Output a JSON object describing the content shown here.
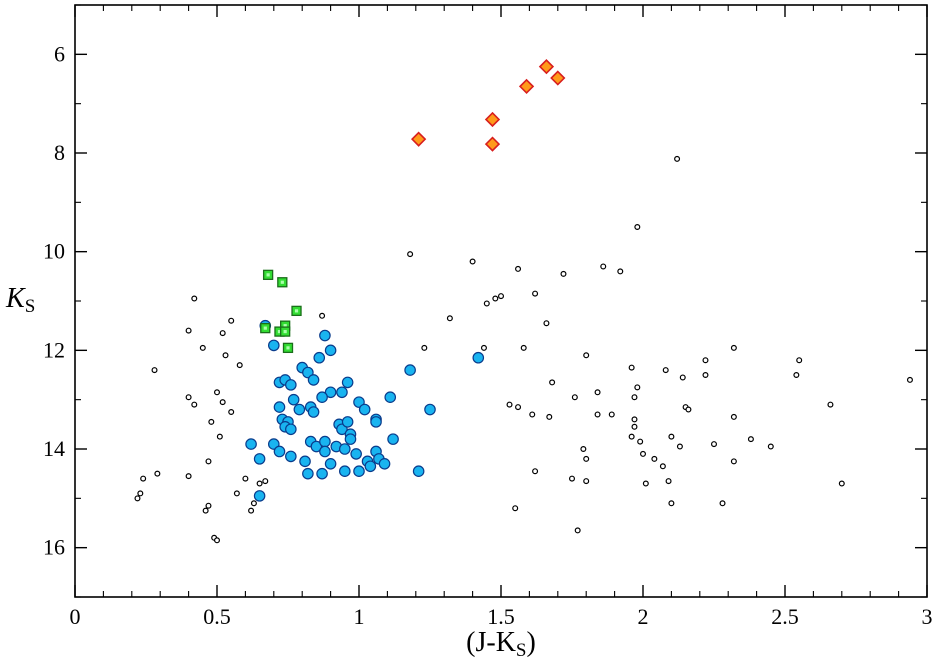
{
  "chart_data": {
    "type": "scatter",
    "title": "",
    "xlabel": "(J-K",
    "xlabel_sub": "S",
    "xlabel_close": ")",
    "ylabel": "K",
    "ylabel_sub": "S",
    "xlim": [
      0,
      3
    ],
    "ylim": [
      17,
      5
    ],
    "y_inverted": true,
    "x_major_ticks": [
      0,
      0.5,
      1,
      1.5,
      2,
      2.5,
      3
    ],
    "x_tick_labels": [
      "0",
      "0.5",
      "1",
      "1.5",
      "2",
      "2.5",
      "3"
    ],
    "y_major_ticks": [
      6,
      8,
      10,
      12,
      14,
      16
    ],
    "y_tick_labels": [
      "6",
      "8",
      "10",
      "12",
      "14",
      "16"
    ],
    "grid": false,
    "legend": "none",
    "colors": {
      "field": "#000000",
      "cyan_fill": "#19b4f0",
      "cyan_edge": "#0a3c8c",
      "green_fill": "#33dd33",
      "green_edge": "#1a6e1a",
      "orange_fill": "#ff9a1a",
      "orange_edge": "#d81e1e"
    },
    "series": [
      {
        "marker": "diamond",
        "color": "#ff9a1a",
        "points": [
          [
            1.21,
            7.72
          ],
          [
            1.47,
            7.32
          ],
          [
            1.47,
            7.82
          ],
          [
            1.59,
            6.65
          ],
          [
            1.66,
            6.25
          ],
          [
            1.7,
            6.48
          ]
        ]
      },
      {
        "marker": "square",
        "color": "#33dd33",
        "points": [
          [
            0.68,
            10.47
          ],
          [
            0.73,
            10.62
          ],
          [
            0.78,
            11.2
          ],
          [
            0.67,
            11.55
          ],
          [
            0.72,
            11.62
          ],
          [
            0.74,
            11.5
          ],
          [
            0.74,
            11.62
          ],
          [
            0.75,
            11.95
          ]
        ]
      },
      {
        "marker": "circle-filled",
        "color": "#19b4f0",
        "points": [
          [
            0.67,
            11.5
          ],
          [
            0.7,
            11.9
          ],
          [
            0.88,
            11.7
          ],
          [
            0.9,
            12.0
          ],
          [
            0.86,
            12.15
          ],
          [
            0.8,
            12.35
          ],
          [
            0.82,
            12.45
          ],
          [
            0.72,
            12.65
          ],
          [
            0.74,
            12.6
          ],
          [
            0.76,
            12.7
          ],
          [
            0.84,
            12.6
          ],
          [
            0.9,
            12.85
          ],
          [
            0.94,
            12.85
          ],
          [
            0.96,
            12.65
          ],
          [
            0.87,
            12.95
          ],
          [
            0.77,
            13.0
          ],
          [
            0.72,
            13.15
          ],
          [
            0.79,
            13.2
          ],
          [
            0.83,
            13.15
          ],
          [
            0.84,
            13.25
          ],
          [
            1.0,
            13.05
          ],
          [
            1.02,
            13.2
          ],
          [
            1.11,
            12.95
          ],
          [
            1.18,
            12.4
          ],
          [
            1.25,
            13.2
          ],
          [
            1.42,
            12.15
          ],
          [
            0.73,
            13.4
          ],
          [
            0.75,
            13.45
          ],
          [
            0.74,
            13.55
          ],
          [
            0.93,
            13.5
          ],
          [
            0.94,
            13.6
          ],
          [
            0.96,
            13.45
          ],
          [
            0.97,
            13.7
          ],
          [
            1.06,
            13.4
          ],
          [
            1.06,
            13.45
          ],
          [
            1.12,
            13.8
          ],
          [
            0.62,
            13.9
          ],
          [
            0.65,
            14.2
          ],
          [
            0.7,
            13.9
          ],
          [
            0.72,
            14.05
          ],
          [
            0.76,
            13.6
          ],
          [
            0.76,
            14.15
          ],
          [
            0.81,
            14.25
          ],
          [
            0.83,
            13.85
          ],
          [
            0.85,
            13.95
          ],
          [
            0.88,
            13.85
          ],
          [
            0.88,
            14.05
          ],
          [
            0.9,
            14.3
          ],
          [
            0.92,
            13.95
          ],
          [
            0.95,
            14.0
          ],
          [
            0.97,
            13.8
          ],
          [
            0.99,
            14.1
          ],
          [
            1.03,
            14.25
          ],
          [
            1.06,
            14.05
          ],
          [
            1.07,
            14.2
          ],
          [
            1.09,
            14.3
          ],
          [
            0.65,
            14.95
          ],
          [
            0.82,
            14.5
          ],
          [
            0.87,
            14.5
          ],
          [
            0.95,
            14.45
          ],
          [
            1.0,
            14.45
          ],
          [
            1.04,
            14.35
          ],
          [
            1.21,
            14.45
          ]
        ]
      },
      {
        "marker": "circle-open",
        "color": "#000000",
        "points": [
          [
            2.12,
            8.12
          ],
          [
            1.98,
            9.5
          ],
          [
            1.18,
            10.05
          ],
          [
            1.4,
            10.2
          ],
          [
            1.56,
            10.35
          ],
          [
            1.86,
            10.3
          ],
          [
            1.92,
            10.4
          ],
          [
            1.72,
            10.45
          ],
          [
            0.42,
            10.95
          ],
          [
            1.62,
            10.85
          ],
          [
            1.5,
            10.9
          ],
          [
            1.48,
            10.95
          ],
          [
            1.45,
            11.05
          ],
          [
            0.4,
            11.6
          ],
          [
            0.55,
            11.4
          ],
          [
            0.52,
            11.65
          ],
          [
            0.87,
            11.3
          ],
          [
            1.32,
            11.35
          ],
          [
            1.66,
            11.45
          ],
          [
            0.45,
            11.95
          ],
          [
            0.53,
            12.1
          ],
          [
            0.58,
            12.3
          ],
          [
            1.23,
            11.95
          ],
          [
            1.44,
            11.95
          ],
          [
            1.58,
            11.95
          ],
          [
            2.32,
            11.95
          ],
          [
            1.8,
            12.1
          ],
          [
            2.22,
            12.2
          ],
          [
            2.55,
            12.2
          ],
          [
            1.96,
            12.35
          ],
          [
            2.08,
            12.4
          ],
          [
            2.14,
            12.55
          ],
          [
            2.22,
            12.5
          ],
          [
            2.54,
            12.5
          ],
          [
            2.94,
            12.6
          ],
          [
            1.68,
            12.65
          ],
          [
            1.98,
            12.75
          ],
          [
            1.84,
            12.85
          ],
          [
            1.97,
            12.95
          ],
          [
            1.76,
            12.95
          ],
          [
            0.28,
            12.4
          ],
          [
            0.4,
            12.95
          ],
          [
            0.42,
            13.1
          ],
          [
            0.52,
            13.05
          ],
          [
            0.5,
            12.85
          ],
          [
            0.55,
            13.25
          ],
          [
            1.53,
            13.1
          ],
          [
            1.56,
            13.15
          ],
          [
            1.61,
            13.3
          ],
          [
            1.67,
            13.35
          ],
          [
            1.84,
            13.3
          ],
          [
            1.89,
            13.3
          ],
          [
            1.97,
            13.4
          ],
          [
            2.15,
            13.15
          ],
          [
            2.16,
            13.2
          ],
          [
            2.32,
            13.35
          ],
          [
            2.66,
            13.1
          ],
          [
            0.48,
            13.45
          ],
          [
            0.51,
            13.75
          ],
          [
            1.97,
            13.55
          ],
          [
            1.96,
            13.75
          ],
          [
            1.99,
            13.85
          ],
          [
            2.1,
            13.75
          ],
          [
            2.13,
            13.95
          ],
          [
            2.25,
            13.9
          ],
          [
            2.38,
            13.8
          ],
          [
            2.0,
            14.1
          ],
          [
            2.04,
            14.2
          ],
          [
            2.07,
            14.35
          ],
          [
            1.79,
            14.0
          ],
          [
            1.8,
            14.2
          ],
          [
            1.62,
            14.45
          ],
          [
            1.75,
            14.6
          ],
          [
            1.8,
            14.65
          ],
          [
            2.01,
            14.7
          ],
          [
            2.09,
            14.65
          ],
          [
            2.32,
            14.25
          ],
          [
            2.45,
            13.95
          ],
          [
            2.7,
            14.7
          ],
          [
            2.1,
            15.1
          ],
          [
            2.28,
            15.1
          ],
          [
            0.22,
            15.0
          ],
          [
            0.23,
            14.9
          ],
          [
            0.24,
            14.6
          ],
          [
            0.29,
            14.5
          ],
          [
            0.4,
            14.55
          ],
          [
            0.47,
            14.25
          ],
          [
            0.47,
            15.15
          ],
          [
            0.46,
            15.25
          ],
          [
            0.49,
            15.8
          ],
          [
            0.5,
            15.85
          ],
          [
            1.77,
            15.65
          ],
          [
            1.55,
            15.2
          ],
          [
            0.57,
            14.9
          ],
          [
            0.6,
            14.6
          ],
          [
            0.63,
            15.1
          ],
          [
            0.62,
            15.25
          ],
          [
            0.65,
            14.7
          ],
          [
            0.67,
            14.65
          ]
        ]
      }
    ]
  }
}
